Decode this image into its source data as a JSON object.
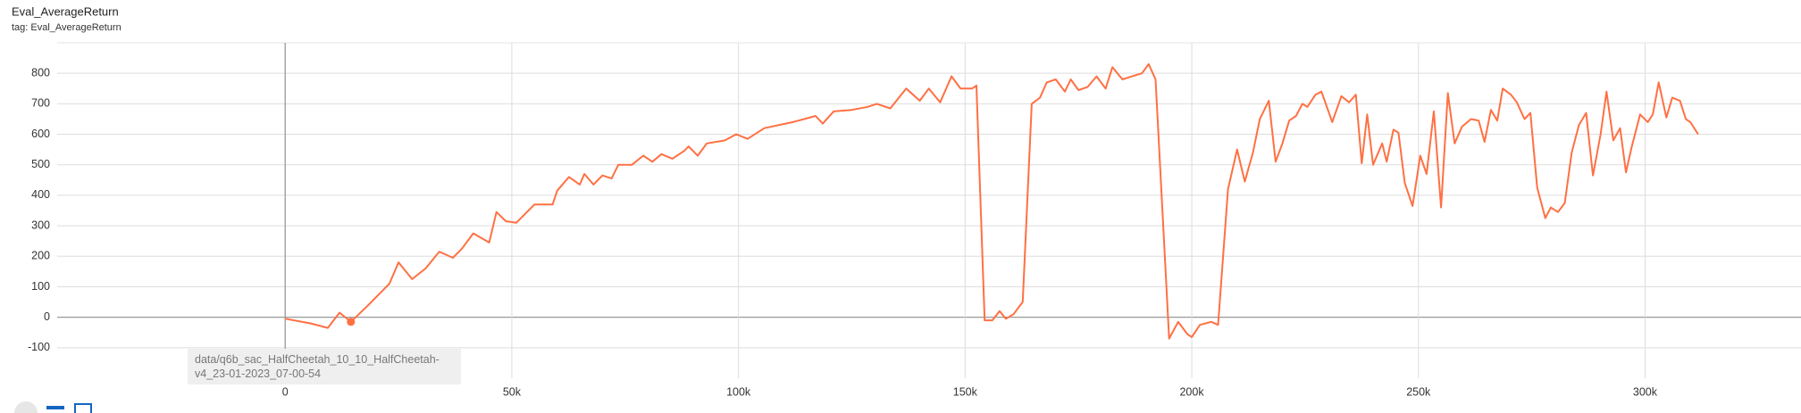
{
  "chart_data": {
    "type": "line",
    "title": "Eval_AverageReturn",
    "subtitle": "tag: Eval_AverageReturn",
    "x": [
      0,
      5600,
      9400,
      12000,
      14500,
      18000,
      21000,
      23000,
      25000,
      28000,
      31000,
      34000,
      37000,
      39000,
      41500,
      45000,
      46600,
      48700,
      51000,
      55000,
      59000,
      60000,
      62600,
      65000,
      66000,
      68000,
      70000,
      72000,
      73500,
      76500,
      79000,
      81000,
      83000,
      85400,
      88000,
      89000,
      91000,
      93000,
      97000,
      99500,
      102000,
      105700,
      112000,
      117000,
      118600,
      121000,
      125000,
      128500,
      130500,
      133500,
      137000,
      140000,
      142000,
      144500,
      147000,
      149000,
      151500,
      152500,
      154300,
      156000,
      157600,
      159000,
      160700,
      162700,
      164700,
      166500,
      168000,
      170000,
      172000,
      173300,
      175000,
      177000,
      179000,
      181000,
      182500,
      184700,
      186800,
      189000,
      190500,
      192000,
      195000,
      197000,
      199000,
      200000,
      201800,
      204300,
      205800,
      208000,
      210000,
      211700,
      213500,
      215000,
      217000,
      218500,
      220000,
      221500,
      223000,
      224400,
      225500,
      227300,
      228600,
      231000,
      233000,
      234700,
      236200,
      237500,
      238700,
      240000,
      242000,
      243000,
      244500,
      245600,
      247000,
      248700,
      250400,
      251800,
      253400,
      255000,
      256500,
      258000,
      259600,
      261600,
      263300,
      264600,
      266000,
      267400,
      268600,
      270400,
      271700,
      273400,
      274700,
      276200,
      278000,
      279200,
      280800,
      282300,
      283800,
      285400,
      287000,
      288500,
      290200,
      291500,
      293000,
      294500,
      295800,
      297000,
      298900,
      300600,
      301700,
      303000,
      304700,
      306000,
      307700,
      309000,
      310000,
      311700
    ],
    "series": [
      {
        "name": "data/q6b_sac_HalfCheetah_10_10_HalfCheetah-v4_23-01-2023_07-00-54",
        "color": "#ff7043",
        "values": [
          -5,
          -20,
          -35,
          15,
          -15,
          35,
          80,
          110,
          180,
          125,
          160,
          215,
          195,
          225,
          275,
          245,
          345,
          315,
          310,
          370,
          370,
          415,
          460,
          435,
          470,
          435,
          465,
          455,
          500,
          500,
          530,
          510,
          535,
          520,
          545,
          560,
          530,
          570,
          580,
          600,
          585,
          620,
          640,
          660,
          635,
          675,
          680,
          690,
          700,
          685,
          750,
          710,
          750,
          705,
          790,
          750,
          750,
          760,
          -10,
          -10,
          20,
          -5,
          10,
          50,
          700,
          720,
          770,
          780,
          740,
          780,
          745,
          755,
          790,
          750,
          820,
          780,
          790,
          800,
          830,
          780,
          -70,
          -15,
          -55,
          -65,
          -25,
          -15,
          -25,
          420,
          550,
          445,
          540,
          650,
          710,
          510,
          570,
          645,
          660,
          700,
          690,
          730,
          740,
          640,
          725,
          705,
          730,
          505,
          665,
          500,
          570,
          510,
          615,
          605,
          440,
          365,
          530,
          470,
          675,
          360,
          735,
          570,
          625,
          650,
          645,
          575,
          680,
          645,
          750,
          730,
          705,
          650,
          670,
          425,
          325,
          360,
          345,
          375,
          540,
          630,
          670,
          465,
          600,
          740,
          580,
          620,
          475,
          555,
          665,
          640,
          665,
          770,
          655,
          720,
          710,
          650,
          640,
          600
        ]
      }
    ],
    "xlim": [
      -50300,
      334400
    ],
    "ylim": [
      -200,
      900
    ],
    "xticks": [
      0,
      {
        "value": 50000,
        "label": "50k"
      },
      {
        "value": 100000,
        "label": "100k"
      },
      {
        "value": 150000,
        "label": "150k"
      },
      {
        "value": 200000,
        "label": "200k"
      },
      {
        "value": 250000,
        "label": "250k"
      },
      {
        "value": 300000,
        "label": "300k"
      }
    ],
    "yticks": [
      -100,
      0,
      100,
      200,
      300,
      400,
      500,
      600,
      700,
      800
    ],
    "grid": true
  }
}
